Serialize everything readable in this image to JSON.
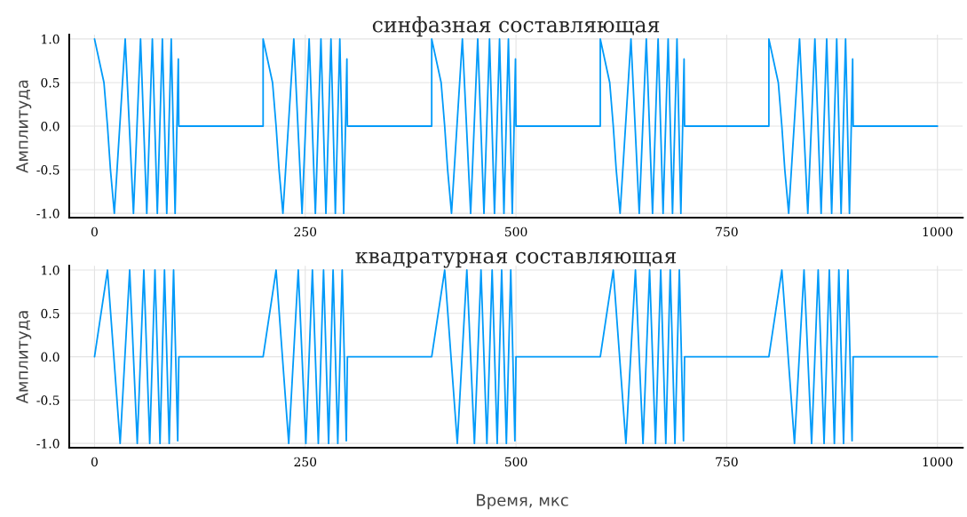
{
  "chart_data": [
    {
      "type": "line",
      "title": "синфазная составляющая",
      "ylabel": "Амплитуда",
      "grid": true,
      "xlim": [
        -30,
        1030
      ],
      "xticks": [
        0,
        250,
        500,
        750,
        1000
      ],
      "ylim": [
        -1.05,
        1.05
      ],
      "yticks": [
        {
          "value": -1,
          "label": "-1.0"
        },
        {
          "value": -0.5,
          "label": "-0.5"
        },
        {
          "value": 0,
          "label": "0.0"
        },
        {
          "value": 0.5,
          "label": "0.5"
        },
        {
          "value": 1,
          "label": "1.0"
        }
      ],
      "series": [
        {
          "color": "#009af9",
          "x": [
            0,
            11.2,
            15.4,
            18.9,
            23.5,
            36.4,
            46.2,
            54.6,
            62,
            68.6,
            74.5,
            80.5,
            85.7,
            91,
            95.6,
            99.4,
            100,
            200,
            200,
            211.2,
            215.4,
            218.9,
            223.5,
            236.4,
            246.2,
            254.6,
            262,
            268.6,
            274.5,
            280.5,
            285.7,
            291,
            295.6,
            299.4,
            300,
            400,
            400,
            411.2,
            415.4,
            418.9,
            423.5,
            436.4,
            446.2,
            454.6,
            462,
            468.6,
            474.5,
            480.5,
            485.7,
            491,
            495.6,
            499.4,
            500,
            600,
            600,
            611.2,
            615.4,
            618.9,
            623.5,
            636.4,
            646.2,
            654.6,
            662,
            668.6,
            674.5,
            680.5,
            685.7,
            691,
            695.6,
            699.4,
            700,
            800,
            800,
            811.2,
            815.4,
            818.9,
            823.5,
            836.4,
            846.2,
            854.6,
            862,
            868.6,
            874.5,
            880.5,
            885.7,
            891,
            895.6,
            899.4,
            900,
            1000
          ],
          "values": [
            1,
            0.5,
            0,
            -0.5,
            -1,
            1,
            -1,
            1,
            -1,
            1,
            -1,
            1,
            -1,
            1,
            -1,
            0.77,
            0,
            0,
            1,
            0.5,
            0,
            -0.5,
            -1,
            1,
            -1,
            1,
            -1,
            1,
            -1,
            1,
            -1,
            1,
            -1,
            0.77,
            0,
            0,
            1,
            0.5,
            0,
            -0.5,
            -1,
            1,
            -1,
            1,
            -1,
            1,
            -1,
            1,
            -1,
            1,
            -1,
            0.77,
            0,
            0,
            1,
            0.5,
            0,
            -0.5,
            -1,
            1,
            -1,
            1,
            -1,
            1,
            -1,
            1,
            -1,
            1,
            -1,
            0.77,
            0,
            0,
            1,
            0.5,
            0,
            -0.5,
            -1,
            1,
            -1,
            1,
            -1,
            1,
            -1,
            1,
            -1,
            1,
            -1,
            0.77,
            0,
            0
          ]
        }
      ]
    },
    {
      "type": "line",
      "title": "квадратурная составляющая",
      "ylabel": "Амплитуда",
      "xlabel": "Время, мкс",
      "grid": true,
      "xlim": [
        -30,
        1030
      ],
      "xticks": [
        0,
        250,
        500,
        750,
        1000
      ],
      "ylim": [
        -1.05,
        1.05
      ],
      "yticks": [
        {
          "value": -1,
          "label": "-1.0"
        },
        {
          "value": -0.5,
          "label": "-0.5"
        },
        {
          "value": 0,
          "label": "0.0"
        },
        {
          "value": 0.5,
          "label": "0.5"
        },
        {
          "value": 1,
          "label": "1.0"
        }
      ],
      "series": [
        {
          "color": "#009af9",
          "x": [
            0,
            15.4,
            30.4,
            41.7,
            50.7,
            58.5,
            65.5,
            71.7,
            77.7,
            83,
            88.6,
            93.8,
            98.7,
            100,
            200,
            215.4,
            230.4,
            241.7,
            250.7,
            258.5,
            265.5,
            271.7,
            277.7,
            283,
            288.6,
            293.8,
            298.7,
            300,
            400,
            415.4,
            430.4,
            441.7,
            450.7,
            458.5,
            465.5,
            471.7,
            477.7,
            483,
            488.6,
            493.8,
            498.7,
            500,
            600,
            615.4,
            630.4,
            641.7,
            650.7,
            658.5,
            665.5,
            671.7,
            677.7,
            683,
            688.6,
            693.8,
            698.7,
            700,
            800,
            815.4,
            830.4,
            841.7,
            850.7,
            858.5,
            865.5,
            871.7,
            877.7,
            883,
            888.6,
            893.8,
            898.7,
            900,
            1000
          ],
          "values": [
            0,
            1,
            -1,
            1,
            -1,
            1,
            -1,
            1,
            -1,
            1,
            -1,
            1,
            -0.97,
            0,
            0,
            1,
            -1,
            1,
            -1,
            1,
            -1,
            1,
            -1,
            1,
            -1,
            1,
            -0.97,
            0,
            0,
            1,
            -1,
            1,
            -1,
            1,
            -1,
            1,
            -1,
            1,
            -1,
            1,
            -0.97,
            0,
            0,
            1,
            -1,
            1,
            -1,
            1,
            -1,
            1,
            -1,
            1,
            -1,
            1,
            -0.97,
            0,
            0,
            1,
            -1,
            1,
            -1,
            1,
            -1,
            1,
            -1,
            1,
            -1,
            1,
            -0.97,
            0,
            0
          ]
        }
      ]
    }
  ]
}
